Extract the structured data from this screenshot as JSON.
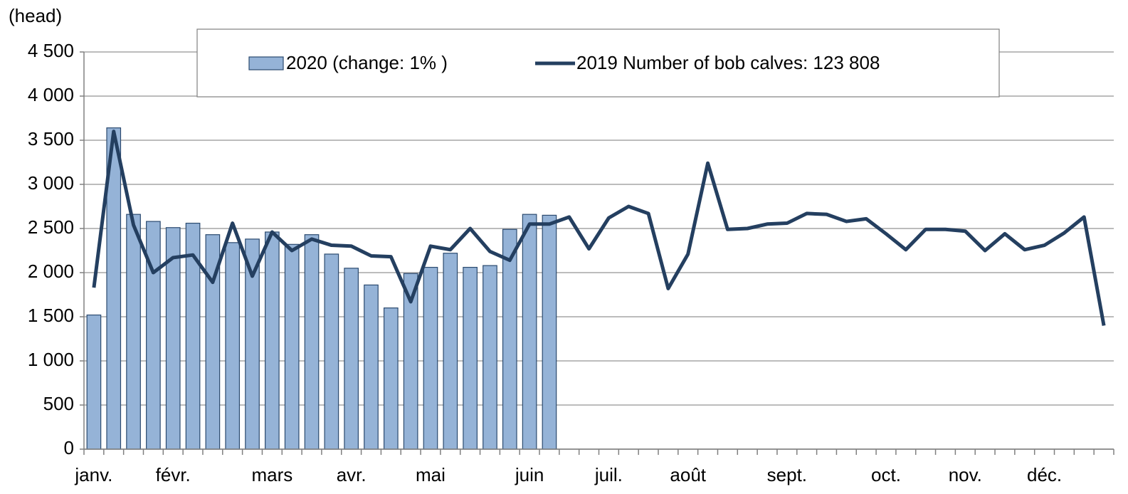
{
  "chart_data": {
    "type": "bar_line",
    "y_axis_label": "(head)",
    "categories": [
      "janv.",
      null,
      null,
      null,
      "févr.",
      null,
      null,
      null,
      null,
      "mars",
      null,
      null,
      null,
      "avr.",
      null,
      null,
      null,
      "mai",
      null,
      null,
      null,
      null,
      "juin",
      null,
      null,
      null,
      "juil.",
      null,
      null,
      null,
      "août",
      null,
      null,
      null,
      null,
      "sept.",
      null,
      null,
      null,
      null,
      "oct.",
      null,
      null,
      null,
      "nov.",
      null,
      null,
      null,
      "déc.",
      null,
      null,
      null
    ],
    "series": [
      {
        "name": "2020 (change: 1% )",
        "type": "bar",
        "color": "#95b3d7",
        "edge_color": "#2b4a6f",
        "values": [
          1520,
          3640,
          2660,
          2580,
          2510,
          2560,
          2430,
          2340,
          2380,
          2460,
          2320,
          2430,
          2210,
          2050,
          1860,
          1600,
          1990,
          2060,
          2220,
          2060,
          2080,
          2490,
          2660,
          2650,
          null,
          null,
          null,
          null,
          null,
          null,
          null,
          null,
          null,
          null,
          null,
          null,
          null,
          null,
          null,
          null,
          null,
          null,
          null,
          null,
          null,
          null,
          null,
          null,
          null,
          null,
          null,
          null
        ]
      },
      {
        "name": "2019 Number of bob calves: 123 808",
        "type": "line",
        "color": "#243f60",
        "values": [
          1830,
          3600,
          2540,
          2000,
          2170,
          2200,
          1890,
          2560,
          1960,
          2460,
          2250,
          2380,
          2310,
          2300,
          2190,
          2180,
          1670,
          2300,
          2260,
          2500,
          2240,
          2140,
          2550,
          2550,
          2630,
          2270,
          2620,
          2750,
          2670,
          1820,
          2210,
          3240,
          2490,
          2500,
          2550,
          2560,
          2670,
          2660,
          2580,
          2610,
          2440,
          2260,
          2490,
          2490,
          2470,
          2250,
          2440,
          2260,
          2310,
          2450,
          2630,
          1400
        ]
      }
    ],
    "ylim": [
      0,
      4500
    ],
    "yticks": [
      0,
      500,
      {
        "value": 1000,
        "label": "1 000"
      },
      {
        "value": 1500,
        "label": "1 500"
      },
      {
        "value": 2000,
        "label": "2 000"
      },
      {
        "value": 2500,
        "label": "2 500"
      },
      {
        "value": 3000,
        "label": "3 000"
      },
      {
        "value": 3500,
        "label": "3 500"
      },
      {
        "value": 4000,
        "label": "4 000"
      },
      {
        "value": 4500,
        "label": "4 500"
      }
    ],
    "grid": true,
    "legend": "top"
  }
}
